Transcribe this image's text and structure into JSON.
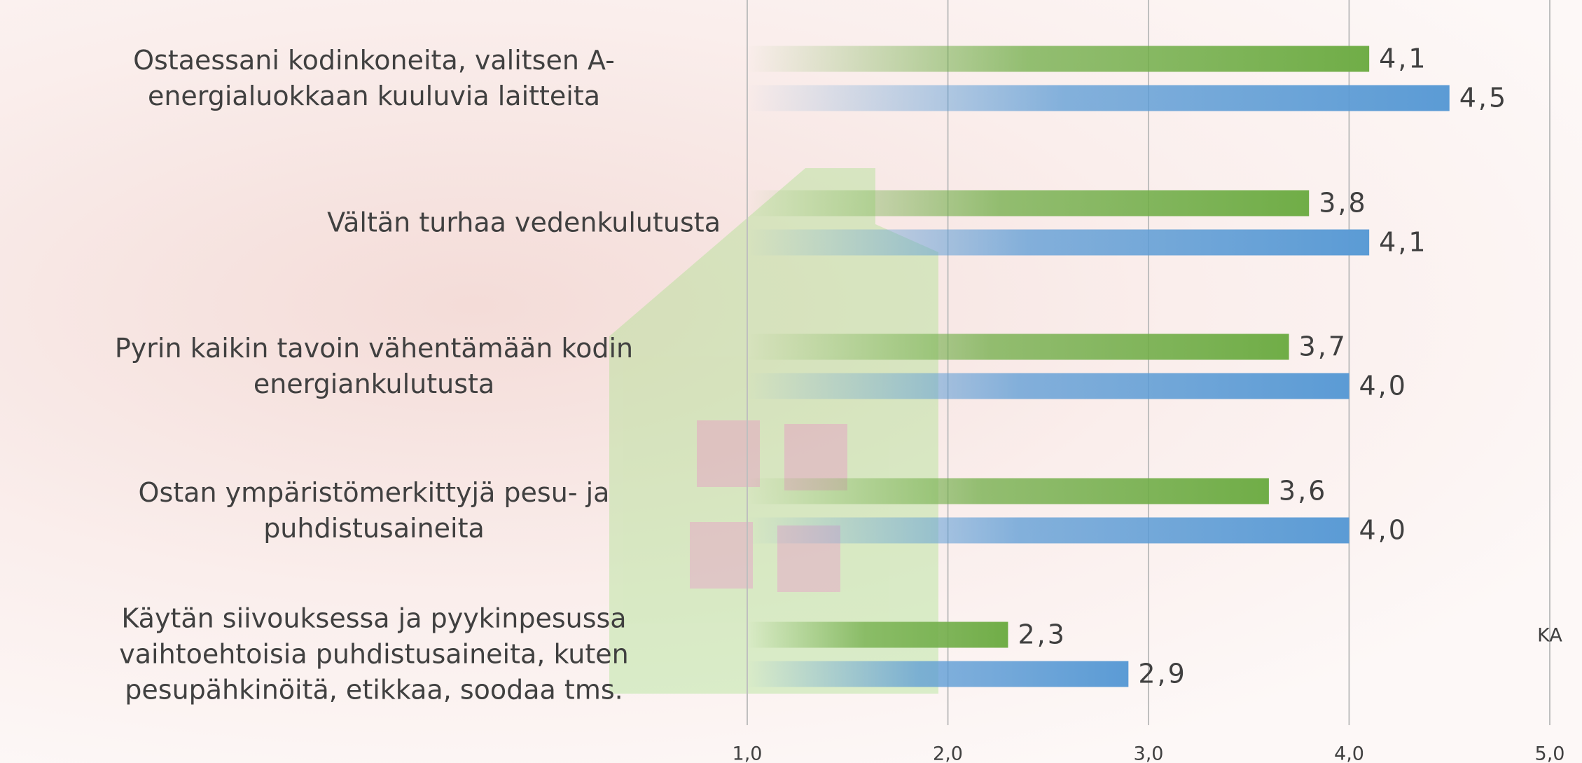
{
  "chart_data": {
    "type": "barh",
    "categories": [
      "Ostaessani kodinkoneita, valitsen A-energialuokkaan kuuluvia laitteita",
      "Vältän turhaa vedenkulutusta",
      "Pyrin kaikin tavoin vähentämään kodin energiankulutusta",
      "Ostan ympäristömerkittyjä pesu- ja puhdistusaineita",
      "Käytän siivouksessa ja pyykinpesussa vaihtoehtoisia puhdistusaineita, kuten pesupähkinöitä, etikkaa, soodaa tms."
    ],
    "series": [
      {
        "color": "#70ad47",
        "values": [
          4.1,
          3.8,
          3.7,
          3.6,
          2.3
        ],
        "value_labels": [
          "4,1",
          "3,8",
          "3,7",
          "3,6",
          "2,3"
        ]
      },
      {
        "color": "#5b9bd5",
        "values": [
          4.5,
          4.1,
          4.0,
          4.0,
          2.9
        ],
        "value_labels": [
          "4,5",
          "4,1",
          "4,0",
          "4,0",
          "2,9"
        ]
      }
    ],
    "xlim": [
      1,
      5
    ],
    "xticks": [
      {
        "value": 1,
        "label": "1,0"
      },
      {
        "value": 2,
        "label": "2,0"
      },
      {
        "value": 3,
        "label": "3,0"
      },
      {
        "value": 4,
        "label": "4,0"
      },
      {
        "value": 5,
        "label": "5,0"
      }
    ],
    "grid": true,
    "annotations": [
      "KA"
    ]
  }
}
